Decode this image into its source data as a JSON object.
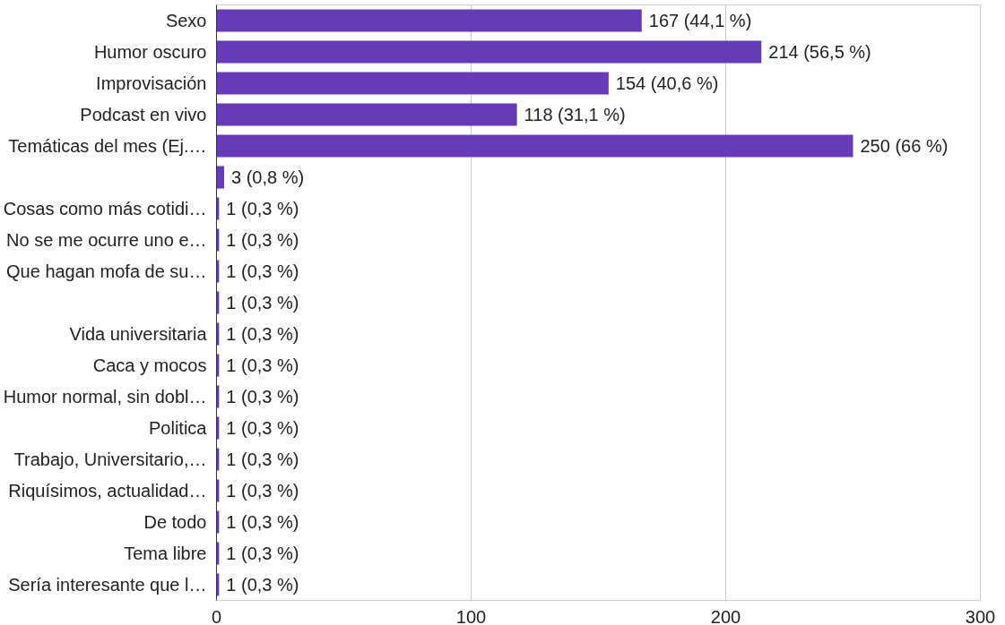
{
  "chart_data": {
    "type": "bar",
    "orientation": "horizontal",
    "categories": [
      "Sexo",
      "Humor oscuro",
      "Improvisación",
      "Podcast en vivo",
      "Temáticas del mes (Ej.…",
      null,
      "Cosas como más cotidi…",
      "No se me ocurre uno e…",
      "Que hagan mofa de su…",
      null,
      "Vida universitaria",
      "Caca y mocos",
      "Humor normal, sin dobl…",
      "Politica",
      "Trabajo, Universitario,…",
      "Riquísimos, actualidad…",
      "De todo",
      "Tema libre",
      "Sería interesante que l…"
    ],
    "values": [
      167,
      214,
      154,
      118,
      250,
      3,
      1,
      1,
      1,
      1,
      1,
      1,
      1,
      1,
      1,
      1,
      1,
      1,
      1
    ],
    "value_labels": [
      "167 (44,1 %)",
      "214 (56,5 %)",
      "154 (40,6 %)",
      "118 (31,1 %)",
      "250 (66 %)",
      "3 (0,8 %)",
      "1 (0,3 %)",
      "1 (0,3 %)",
      "1 (0,3 %)",
      "1 (0,3 %)",
      "1 (0,3 %)",
      "1 (0,3 %)",
      "1 (0,3 %)",
      "1 (0,3 %)",
      "1 (0,3 %)",
      "1 (0,3 %)",
      "1 (0,3 %)",
      "1 (0,3 %)",
      "1 (0,3 %)"
    ],
    "color": "#673ab7",
    "xlim": [
      0,
      300
    ],
    "xticks": [
      0,
      100,
      200,
      300
    ],
    "grid": "x"
  }
}
